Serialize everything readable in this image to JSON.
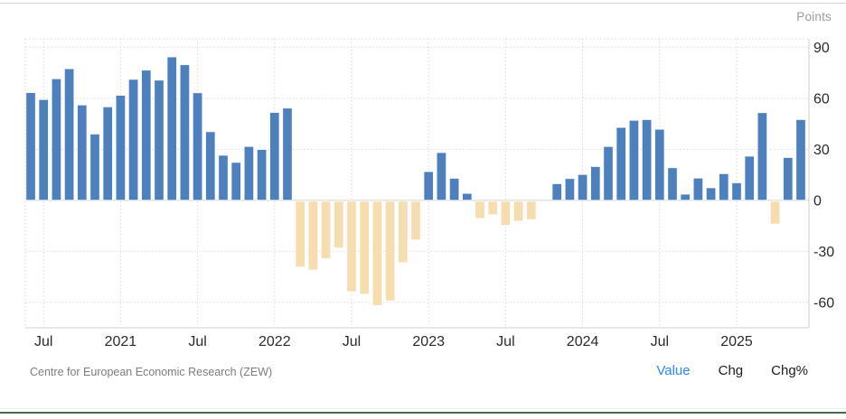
{
  "header": {
    "units_label": "Points"
  },
  "footer": {
    "source": "Centre for European Economic Research (ZEW)"
  },
  "legend": {
    "options": [
      {
        "label": "Value",
        "active": true
      },
      {
        "label": "Chg",
        "active": false
      },
      {
        "label": "Chg%",
        "active": false
      }
    ]
  },
  "colors": {
    "positive_bar": "#4e80bd",
    "negative_bar": "#f5ddb0",
    "bar_stroke": "rgba(255,255,255,0.85)",
    "grid": "#dadada",
    "zero_line": "#d2d2d2",
    "axis_line": "#cfcfcf",
    "axis_text": "#2b2b2b",
    "active_option": "#2e86f0"
  },
  "chart_data": {
    "type": "bar",
    "unit": "Points",
    "source": "Centre for European Economic Research (ZEW)",
    "grid": "dotted",
    "legend_position": "none",
    "x": [
      "2020-06",
      "2020-07",
      "2020-08",
      "2020-09",
      "2020-10",
      "2020-11",
      "2020-12",
      "2021-01",
      "2021-02",
      "2021-03",
      "2021-04",
      "2021-05",
      "2021-06",
      "2021-07",
      "2021-08",
      "2021-09",
      "2021-10",
      "2021-11",
      "2021-12",
      "2022-01",
      "2022-02",
      "2022-03",
      "2022-04",
      "2022-05",
      "2022-06",
      "2022-07",
      "2022-08",
      "2022-09",
      "2022-10",
      "2022-11",
      "2022-12",
      "2023-01",
      "2023-02",
      "2023-03",
      "2023-04",
      "2023-05",
      "2023-06",
      "2023-07",
      "2023-08",
      "2023-09",
      "2023-10",
      "2023-11",
      "2023-12",
      "2024-01",
      "2024-02",
      "2024-03",
      "2024-04",
      "2024-05",
      "2024-06",
      "2024-07",
      "2024-08",
      "2024-09",
      "2024-10",
      "2024-11",
      "2024-12",
      "2025-01",
      "2025-02",
      "2025-03",
      "2025-04",
      "2025-05",
      "2025-06"
    ],
    "values": [
      63.4,
      59.3,
      71.5,
      77.4,
      56.1,
      39.0,
      55.0,
      61.8,
      71.2,
      76.6,
      70.7,
      84.4,
      79.8,
      63.3,
      40.4,
      26.5,
      22.3,
      31.7,
      29.9,
      51.7,
      54.3,
      -39.3,
      -41.0,
      -34.3,
      -28.0,
      -53.8,
      -55.3,
      -61.9,
      -59.2,
      -36.7,
      -23.3,
      16.9,
      28.1,
      13.0,
      4.1,
      -10.7,
      -8.5,
      -14.7,
      -12.3,
      -11.4,
      -1.1,
      9.8,
      12.8,
      15.2,
      19.9,
      31.7,
      42.9,
      47.1,
      47.5,
      41.8,
      19.2,
      3.6,
      13.1,
      7.4,
      15.7,
      10.3,
      26.0,
      51.6,
      -14.0,
      25.2,
      47.5
    ],
    "x_axis": {
      "tick_labels": [
        {
          "label": "Jul",
          "index": 1
        },
        {
          "label": "2021",
          "index": 7
        },
        {
          "label": "Jul",
          "index": 13
        },
        {
          "label": "2022",
          "index": 19
        },
        {
          "label": "Jul",
          "index": 25
        },
        {
          "label": "2023",
          "index": 31
        },
        {
          "label": "Jul",
          "index": 37
        },
        {
          "label": "2024",
          "index": 43
        },
        {
          "label": "Jul",
          "index": 49
        },
        {
          "label": "2025",
          "index": 55
        }
      ]
    },
    "y_axis": {
      "ticks": [
        90,
        60,
        30,
        0,
        -30,
        -60
      ],
      "range": [
        -75,
        95
      ],
      "unit": "Points"
    }
  }
}
